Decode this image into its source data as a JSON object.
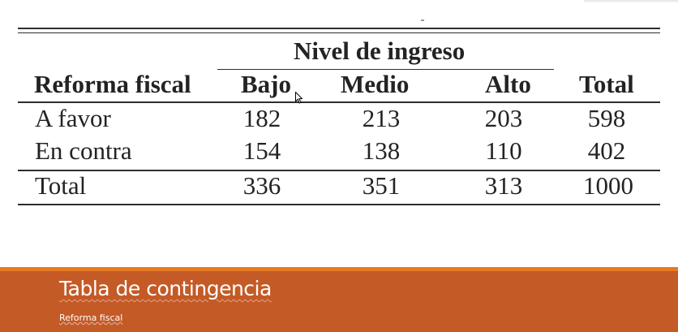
{
  "table": {
    "group_header": "Nivel de ingreso",
    "row_header": "Reforma fiscal",
    "columns": [
      "Bajo",
      "Medio",
      "Alto",
      "Total"
    ],
    "rows": [
      {
        "label": "A favor",
        "values": [
          "182",
          "213",
          "203",
          "598"
        ]
      },
      {
        "label": "En contra",
        "values": [
          "154",
          "138",
          "110",
          "402"
        ]
      },
      {
        "label": "Total",
        "values": [
          "336",
          "351",
          "313",
          "1000"
        ]
      }
    ]
  },
  "footer": {
    "title": "Tabla de contingencia",
    "subtitle": "Reforma fiscal"
  },
  "colors": {
    "banner": "#c45a26",
    "banner_border": "#e67a22",
    "table_text": "#232323"
  },
  "icons": {
    "cursor": "mouse-pointer-icon"
  }
}
